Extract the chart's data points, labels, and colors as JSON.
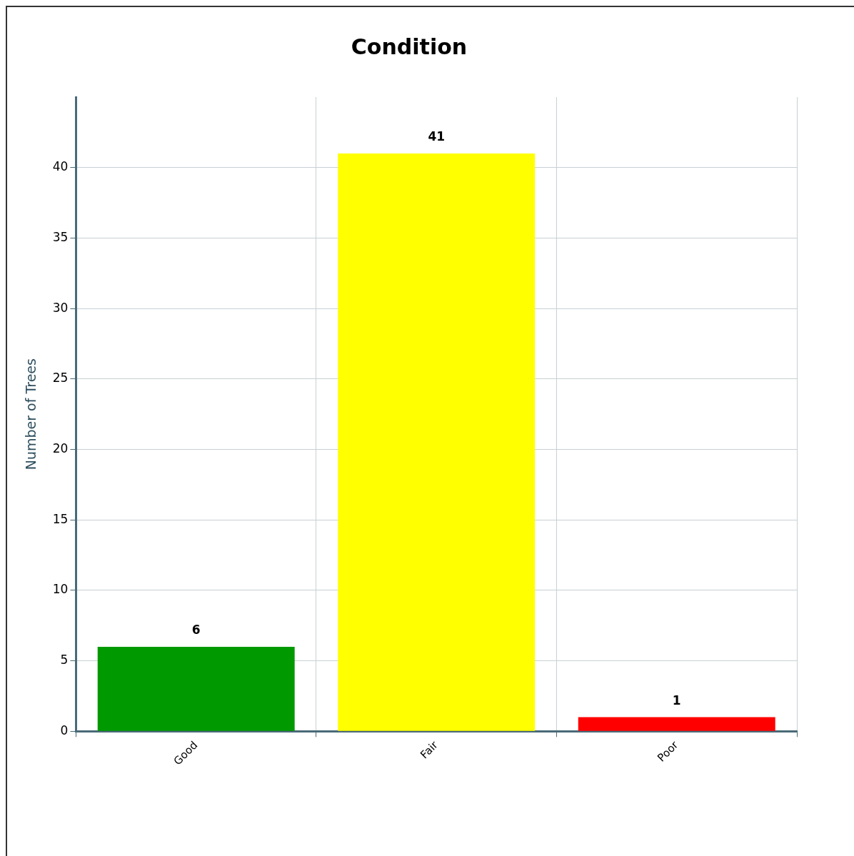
{
  "chart_data": {
    "type": "bar",
    "title": "Condition",
    "ylabel": "Number of Trees",
    "categories": [
      "Good",
      "Fair",
      "Poor"
    ],
    "values": [
      6,
      41,
      1
    ],
    "colors": [
      "#009900",
      "#ffff00",
      "#ff0000"
    ],
    "ylim": [
      0,
      45
    ],
    "yticks": [
      0,
      5,
      10,
      15,
      20,
      25,
      30,
      35,
      40
    ],
    "grid": true,
    "legend": false,
    "data_labels": true
  }
}
